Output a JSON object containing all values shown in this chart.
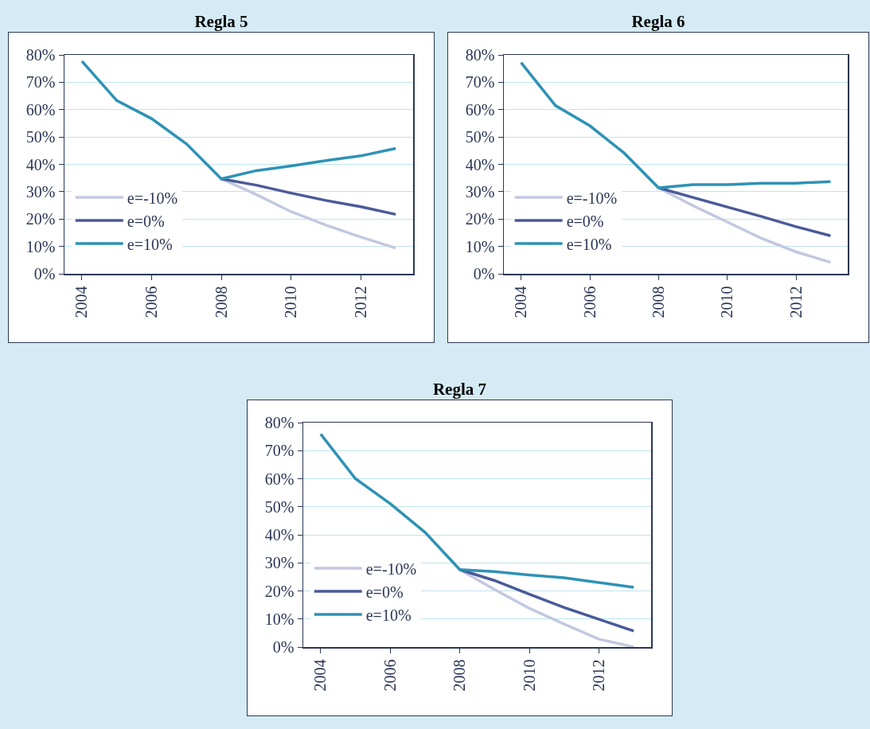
{
  "chart_data": [
    {
      "type": "line",
      "title": "Regla 5",
      "categories": [
        "2004",
        null,
        "2006",
        null,
        "2008",
        null,
        "2010",
        null,
        "2012",
        null
      ],
      "ylim": [
        0,
        80
      ],
      "yticks": [
        {
          "value": 0,
          "label": "0%"
        },
        {
          "value": 10,
          "label": "10%"
        },
        {
          "value": 20,
          "label": "20%"
        },
        {
          "value": 30,
          "label": "30%"
        },
        {
          "value": 40,
          "label": "40%"
        },
        {
          "value": 50,
          "label": "50%"
        },
        {
          "value": 60,
          "label": "60%"
        },
        {
          "value": 70,
          "label": "70%"
        },
        {
          "value": 80,
          "label": "80%"
        }
      ],
      "grid": "y",
      "legend": "bottom left",
      "series": [
        {
          "name": "e=-10%",
          "color": "#c3c8e0",
          "values": [
            null,
            null,
            null,
            null,
            34.7,
            29,
            22.7,
            17.8,
            13.4,
            9.4
          ]
        },
        {
          "name": "e=0%",
          "color": "#4a5a9a",
          "values": [
            null,
            null,
            null,
            null,
            34.7,
            32.4,
            29.5,
            26.8,
            24.5,
            21.7
          ]
        },
        {
          "name": "e=10%",
          "color": "#2e92b5",
          "values": [
            77.7,
            63.3,
            56.7,
            47.5,
            34.7,
            37.7,
            39.4,
            41.4,
            43.1,
            45.8
          ]
        }
      ]
    },
    {
      "type": "line",
      "title": "Regla 6",
      "categories": [
        "2004",
        null,
        "2006",
        null,
        "2008",
        null,
        "2010",
        null,
        "2012",
        null
      ],
      "ylim": [
        0,
        80
      ],
      "yticks": [
        {
          "value": 0,
          "label": "0%"
        },
        {
          "value": 10,
          "label": "10%"
        },
        {
          "value": 20,
          "label": "20%"
        },
        {
          "value": 30,
          "label": "30%"
        },
        {
          "value": 40,
          "label": "40%"
        },
        {
          "value": 50,
          "label": "50%"
        },
        {
          "value": 60,
          "label": "60%"
        },
        {
          "value": 70,
          "label": "70%"
        },
        {
          "value": 80,
          "label": "80%"
        }
      ],
      "grid": "y",
      "legend": "bottom left",
      "series": [
        {
          "name": "e=-10%",
          "color": "#c3c8e0",
          "values": [
            null,
            null,
            null,
            null,
            31.4,
            24.9,
            18.9,
            12.9,
            8,
            4.2
          ]
        },
        {
          "name": "e=0%",
          "color": "#4a5a9a",
          "values": [
            null,
            null,
            null,
            null,
            31.4,
            27.9,
            24.4,
            20.9,
            17.2,
            13.9
          ]
        },
        {
          "name": "e=10%",
          "color": "#2e92b5",
          "values": [
            77.2,
            61.5,
            54.1,
            44.1,
            31.4,
            32.6,
            32.6,
            33.1,
            33.1,
            33.7
          ]
        }
      ]
    },
    {
      "type": "line",
      "title": "Regla 7",
      "categories": [
        "2004",
        null,
        "2006",
        null,
        "2008",
        null,
        "2010",
        null,
        "2012",
        null
      ],
      "ylim": [
        0,
        80
      ],
      "yticks": [
        {
          "value": 0,
          "label": "0%"
        },
        {
          "value": 10,
          "label": "10%"
        },
        {
          "value": 20,
          "label": "20%"
        },
        {
          "value": 30,
          "label": "30%"
        },
        {
          "value": 40,
          "label": "40%"
        },
        {
          "value": 50,
          "label": "50%"
        },
        {
          "value": 60,
          "label": "60%"
        },
        {
          "value": 70,
          "label": "70%"
        },
        {
          "value": 80,
          "label": "80%"
        }
      ],
      "grid": "y",
      "legend": "bottom left",
      "series": [
        {
          "name": "e=-10%",
          "color": "#c3c8e0",
          "values": [
            null,
            null,
            null,
            null,
            27.6,
            20.5,
            13.8,
            8.2,
            2.8,
            0
          ]
        },
        {
          "name": "e=0%",
          "color": "#4a5a9a",
          "values": [
            null,
            null,
            null,
            null,
            27.6,
            23.7,
            18.8,
            14.1,
            9.9,
            5.7
          ]
        },
        {
          "name": "e=10%",
          "color": "#2e92b5",
          "values": [
            75.9,
            60,
            51.1,
            40.9,
            27.6,
            26.9,
            25.7,
            24.7,
            23,
            21.3
          ]
        }
      ]
    }
  ]
}
